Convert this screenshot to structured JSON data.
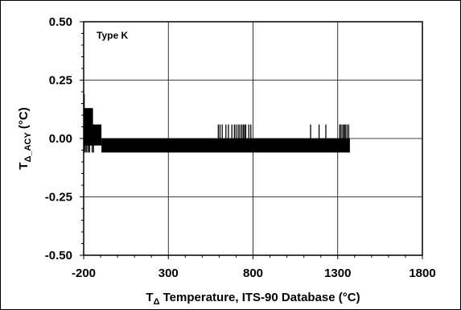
{
  "chart_data": {
    "type": "line",
    "annotation": "Type K",
    "xlabel": {
      "main": "T",
      "sub": "Δ",
      "rest": " Temperature, ITS-90 Database (°C)"
    },
    "ylabel": {
      "main": "T",
      "sub": "Δ_ACY",
      "rest": " (°C)"
    },
    "xlim": [
      -200,
      1800
    ],
    "ylim": [
      -0.5,
      0.5
    ],
    "x_ticks": [
      -200,
      300,
      800,
      1300,
      1800
    ],
    "x_tick_labels": [
      "-200",
      "300",
      "800",
      "1300",
      "1800"
    ],
    "y_ticks": [
      0.5,
      0.25,
      0,
      -0.25,
      -0.5
    ],
    "y_tick_labels": [
      "0.50",
      "0.25",
      "0.00",
      "-0.25",
      "-0.50"
    ],
    "grid": true,
    "series": [
      {
        "color": "#000000",
        "bands": [
          {
            "x": [
              -200,
              -145
            ],
            "y": [
              -0.03,
              0.13
            ]
          },
          {
            "x": [
              -145,
              -95
            ],
            "y": [
              -0.03,
              0.06
            ]
          },
          {
            "x": [
              -95,
              1372
            ],
            "y": [
              -0.06,
              0.0
            ]
          }
        ],
        "spikes": [
          {
            "x": -197,
            "y": [
              -0.06,
              0.19
            ]
          },
          {
            "x": -190,
            "y": [
              -0.06,
              0.13
            ]
          },
          {
            "x": -182,
            "y": [
              -0.06,
              0.13
            ]
          },
          {
            "x": -173,
            "y": [
              -0.06,
              0.13
            ]
          },
          {
            "x": -165,
            "y": [
              -0.06,
              0.13
            ]
          },
          {
            "x": -150,
            "y": [
              -0.06,
              0.13
            ]
          },
          {
            "x": -142,
            "y": [
              -0.06,
              0.06
            ]
          },
          {
            "x": 595,
            "y": [
              -0.03,
              0.06
            ]
          },
          {
            "x": 605,
            "y": [
              -0.03,
              0.06
            ]
          },
          {
            "x": 618,
            "y": [
              -0.03,
              0.06
            ]
          },
          {
            "x": 640,
            "y": [
              -0.03,
              0.06
            ]
          },
          {
            "x": 655,
            "y": [
              -0.03,
              0.06
            ]
          },
          {
            "x": 675,
            "y": [
              -0.03,
              0.06
            ]
          },
          {
            "x": 690,
            "y": [
              -0.03,
              0.06
            ]
          },
          {
            "x": 700,
            "y": [
              -0.03,
              0.06
            ]
          },
          {
            "x": 712,
            "y": [
              -0.03,
              0.06
            ]
          },
          {
            "x": 722,
            "y": [
              -0.03,
              0.06
            ]
          },
          {
            "x": 733,
            "y": [
              -0.03,
              0.06
            ]
          },
          {
            "x": 742,
            "y": [
              -0.03,
              0.06
            ]
          },
          {
            "x": 750,
            "y": [
              -0.03,
              0.06
            ]
          },
          {
            "x": 757,
            "y": [
              -0.03,
              0.06
            ]
          },
          {
            "x": 775,
            "y": [
              -0.03,
              0.06
            ]
          },
          {
            "x": 787,
            "y": [
              -0.03,
              0.06
            ]
          },
          {
            "x": 1140,
            "y": [
              -0.03,
              0.06
            ]
          },
          {
            "x": 1190,
            "y": [
              -0.03,
              0.06
            ]
          },
          {
            "x": 1230,
            "y": [
              -0.03,
              0.06
            ]
          },
          {
            "x": 1312,
            "y": [
              -0.03,
              0.06
            ]
          },
          {
            "x": 1320,
            "y": [
              -0.03,
              0.06
            ]
          },
          {
            "x": 1330,
            "y": [
              -0.03,
              0.06
            ]
          },
          {
            "x": 1338,
            "y": [
              -0.03,
              0.06
            ]
          },
          {
            "x": 1345,
            "y": [
              -0.03,
              0.06
            ]
          },
          {
            "x": 1355,
            "y": [
              -0.03,
              0.06
            ]
          },
          {
            "x": 1365,
            "y": [
              -0.03,
              0.06
            ]
          }
        ]
      }
    ]
  }
}
